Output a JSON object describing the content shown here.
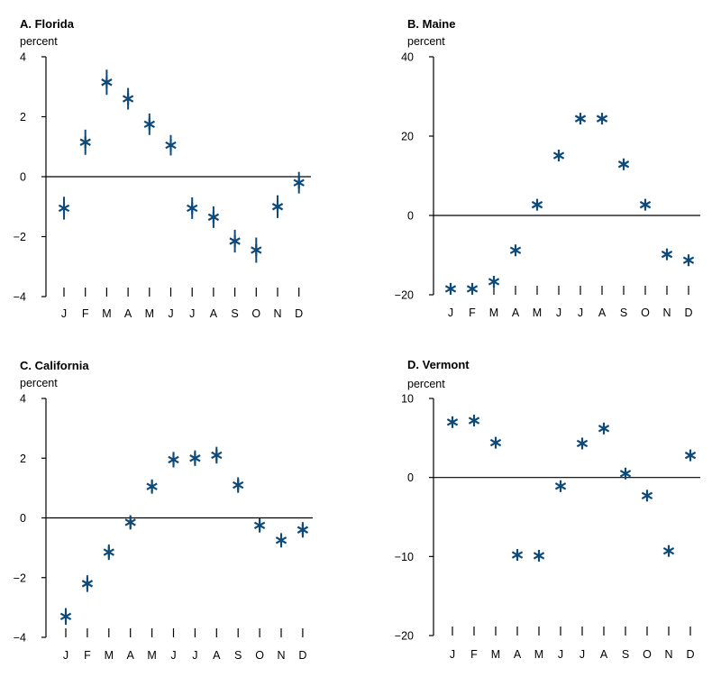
{
  "chart_data": [
    {
      "type": "scatter",
      "title": "A. Florida",
      "ylabel": "percent",
      "categories": [
        "J",
        "F",
        "M",
        "A",
        "M",
        "J",
        "J",
        "A",
        "S",
        "O",
        "N",
        "D"
      ],
      "values": [
        -1.05,
        1.15,
        3.15,
        2.6,
        1.75,
        1.05,
        -1.05,
        -1.35,
        -2.15,
        -2.45,
        -1.0,
        -0.2
      ],
      "error_bars": [
        0.38,
        0.42,
        0.42,
        0.36,
        0.36,
        0.34,
        0.36,
        0.36,
        0.38,
        0.42,
        0.38,
        0.36
      ],
      "ylim": [
        -4,
        4
      ],
      "yticks": [
        -4,
        -2,
        0,
        2,
        4
      ],
      "ytick_labels": [
        "−4",
        "−2",
        "0",
        "2",
        "4"
      ]
    },
    {
      "type": "scatter",
      "title": "B. Maine",
      "ylabel": "percent",
      "categories": [
        "J",
        "F",
        "M",
        "A",
        "M",
        "J",
        "J",
        "A",
        "S",
        "O",
        "N",
        "D"
      ],
      "values": [
        -18.5,
        -18.5,
        -16.7,
        -8.8,
        2.7,
        15.1,
        24.4,
        24.4,
        12.9,
        2.7,
        -9.8,
        -11.3
      ],
      "error_bars": [
        0,
        0,
        0,
        0,
        0,
        0,
        0,
        0,
        0,
        0,
        0,
        0
      ],
      "ylim": [
        -20,
        40
      ],
      "yticks": [
        -20,
        0,
        20,
        40
      ],
      "ytick_labels": [
        "−20",
        "0",
        "20",
        "40"
      ]
    },
    {
      "type": "scatter",
      "title": "C. California",
      "ylabel": "percent",
      "categories": [
        "J",
        "F",
        "M",
        "A",
        "M",
        "J",
        "J",
        "A",
        "S",
        "O",
        "N",
        "D"
      ],
      "values": [
        -3.3,
        -2.2,
        -1.15,
        -0.15,
        1.05,
        1.95,
        2.0,
        2.1,
        1.1,
        -0.25,
        -0.75,
        -0.4
      ],
      "error_bars": [
        0.28,
        0.28,
        0.26,
        0.24,
        0.24,
        0.26,
        0.26,
        0.28,
        0.26,
        0.24,
        0.24,
        0.26
      ],
      "ylim": [
        -4,
        4
      ],
      "yticks": [
        -4,
        -2,
        0,
        2,
        4
      ],
      "ytick_labels": [
        "−4",
        "−2",
        "0",
        "2",
        "4"
      ]
    },
    {
      "type": "scatter",
      "title": "D. Vermont",
      "ylabel": "percent",
      "categories": [
        "J",
        "F",
        "M",
        "A",
        "M",
        "J",
        "J",
        "A",
        "S",
        "O",
        "N",
        "D"
      ],
      "values": [
        7.0,
        7.2,
        4.4,
        -9.8,
        -9.9,
        -1.1,
        4.3,
        6.2,
        0.5,
        -2.3,
        -9.3,
        2.8
      ],
      "error_bars": [
        0,
        0,
        0,
        0,
        0,
        0,
        0,
        0,
        0,
        0,
        0,
        0
      ],
      "ylim": [
        -20,
        10
      ],
      "yticks": [
        -20,
        -10,
        0,
        10
      ],
      "ytick_labels": [
        "−20",
        "−10",
        "0",
        "10"
      ]
    }
  ]
}
